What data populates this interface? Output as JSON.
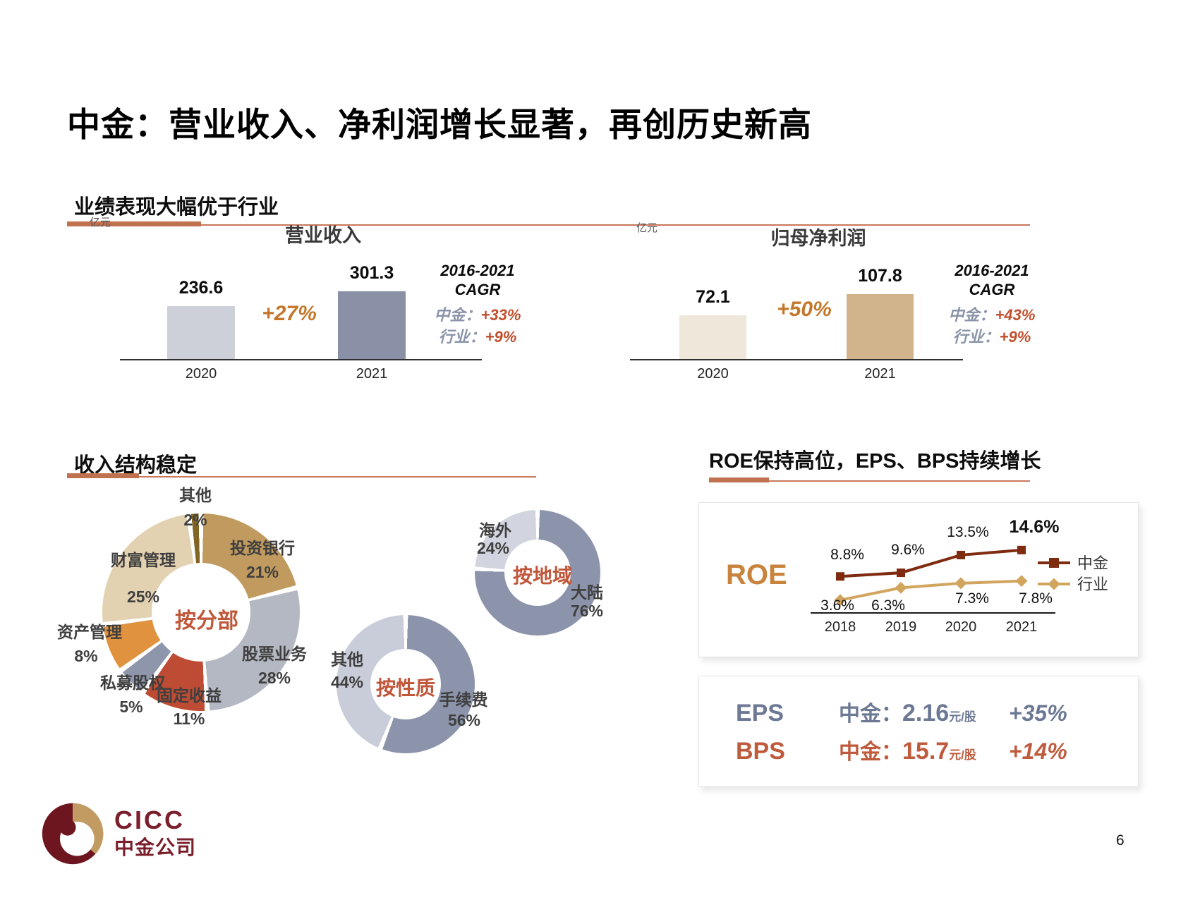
{
  "page": {
    "title": "中金：营业收入、净利润增长显著，再创历史新高",
    "page_number": "6"
  },
  "logo": {
    "text": "CICC",
    "cn": "中金公司"
  },
  "accent": {
    "underline_thick": "#C0714E",
    "underline_thin": "#C9785A",
    "growth_orange": "#C4772A",
    "cagr_label_gray": "#8A93A8",
    "cagr_value_red": "#C24F2E",
    "donut_center_orange": "#C0563A"
  },
  "section_performance": {
    "header": "业绩表现大幅优于行业",
    "revenue_chart": {
      "unit": "亿元",
      "title": "营业收入",
      "growth": "+27%",
      "cagr": {
        "period": "2016-2021",
        "label": "CAGR",
        "rows": [
          {
            "name": "中金：",
            "value": "+33%"
          },
          {
            "name": "行业：",
            "value": "+9%"
          }
        ]
      },
      "bars": [
        {
          "year": "2020",
          "value": 236.6,
          "label": "236.6",
          "color": "#CDCFD9"
        },
        {
          "year": "2021",
          "value": 301.3,
          "label": "301.3",
          "color": "#8A90A5"
        }
      ]
    },
    "profit_chart": {
      "unit": "亿元",
      "title": "归母净利润",
      "growth": "+50%",
      "cagr": {
        "period": "2016-2021",
        "label": "CAGR",
        "rows": [
          {
            "name": "中金：",
            "value": "+43%"
          },
          {
            "name": "行业：",
            "value": "+9%"
          }
        ]
      },
      "bars": [
        {
          "year": "2020",
          "value": 72.1,
          "label": "72.1",
          "color": "#EEE7DA"
        },
        {
          "year": "2021",
          "value": 107.8,
          "label": "107.8",
          "color": "#D2B48C"
        }
      ]
    }
  },
  "section_structure": {
    "header": "收入结构稳定",
    "by_division": {
      "center_label": "按分部",
      "slices": [
        {
          "label": "投资银行",
          "pct": 21,
          "pct_label": "21%",
          "color": "#C09A5E"
        },
        {
          "label": "股票业务",
          "pct": 28,
          "pct_label": "28%",
          "color": "#B4B8C2"
        },
        {
          "label": "固定收益",
          "pct": 11,
          "pct_label": "11%",
          "color": "#BE4B33"
        },
        {
          "label": "私募股权",
          "pct": 5,
          "pct_label": "5%",
          "color": "#8E96AC"
        },
        {
          "label": "资产管理",
          "pct": 8,
          "pct_label": "8%",
          "color": "#E0923F"
        },
        {
          "label": "财富管理",
          "pct": 25,
          "pct_label": "25%",
          "color": "#E3D2B2"
        },
        {
          "label": "其他",
          "pct": 2,
          "pct_label": "2%",
          "color": "#826423"
        }
      ]
    },
    "by_nature": {
      "center_label": "按性质",
      "slices": [
        {
          "label": "手续费",
          "pct": 56,
          "pct_label": "56%",
          "color": "#8C94AB"
        },
        {
          "label": "其他",
          "pct": 44,
          "pct_label": "44%",
          "color": "#C9CDD9"
        }
      ]
    },
    "by_region": {
      "center_label": "按地域",
      "slices": [
        {
          "label": "大陆",
          "pct": 76,
          "pct_label": "76%",
          "color": "#8C94AB"
        },
        {
          "label": "海外",
          "pct": 24,
          "pct_label": "24%",
          "color": "#D2D5DF"
        }
      ]
    }
  },
  "section_returns": {
    "header": "ROE保持高位，EPS、BPS持续增长",
    "roe_chart": {
      "title": "ROE",
      "years": [
        "2018",
        "2019",
        "2020",
        "2021"
      ],
      "series": [
        {
          "name": "中金",
          "color": "#7E2B10",
          "marker": "square",
          "values": [
            8.8,
            9.6,
            13.5,
            14.6
          ],
          "labels": [
            "8.8%",
            "9.6%",
            "13.5%",
            "14.6%"
          ]
        },
        {
          "name": "行业",
          "color": "#D2A55F",
          "marker": "diamond",
          "values": [
            3.6,
            6.3,
            7.3,
            7.8
          ],
          "labels": [
            "3.6%",
            "6.3%",
            "7.3%",
            "7.8%"
          ]
        }
      ]
    },
    "kpis": [
      {
        "name": "EPS",
        "label": "中金：",
        "value": "2.16",
        "unit": "元/股",
        "growth": "+35%",
        "color": "#6D7894"
      },
      {
        "name": "BPS",
        "label": "中金：",
        "value": "15.7",
        "unit": "元/股",
        "growth": "+14%",
        "color": "#BF5B3D"
      }
    ]
  },
  "chart_data": [
    {
      "type": "bar",
      "title": "营业收入",
      "ylabel": "亿元",
      "categories": [
        "2020",
        "2021"
      ],
      "values": [
        236.6,
        301.3
      ],
      "growth": "+27%",
      "cagr_2016_2021": {
        "中金": "+33%",
        "行业": "+9%"
      }
    },
    {
      "type": "bar",
      "title": "归母净利润",
      "ylabel": "亿元",
      "categories": [
        "2020",
        "2021"
      ],
      "values": [
        72.1,
        107.8
      ],
      "growth": "+50%",
      "cagr_2016_2021": {
        "中金": "+43%",
        "行业": "+9%"
      }
    },
    {
      "type": "pie",
      "title": "按分部",
      "categories": [
        "投资银行",
        "股票业务",
        "固定收益",
        "私募股权",
        "资产管理",
        "财富管理",
        "其他"
      ],
      "values": [
        21,
        28,
        11,
        5,
        8,
        25,
        2
      ]
    },
    {
      "type": "pie",
      "title": "按性质",
      "categories": [
        "手续费",
        "其他"
      ],
      "values": [
        56,
        44
      ]
    },
    {
      "type": "pie",
      "title": "按地域",
      "categories": [
        "大陆",
        "海外"
      ],
      "values": [
        76,
        24
      ]
    },
    {
      "type": "line",
      "title": "ROE",
      "x": [
        "2018",
        "2019",
        "2020",
        "2021"
      ],
      "series": [
        {
          "name": "中金",
          "values": [
            8.8,
            9.6,
            13.5,
            14.6
          ]
        },
        {
          "name": "行业",
          "values": [
            3.6,
            6.3,
            7.3,
            7.8
          ]
        }
      ],
      "legend_position": "right",
      "grid": false
    },
    {
      "type": "table",
      "title": "EPS/BPS",
      "rows": [
        [
          "EPS",
          "中金：",
          "2.16",
          "元/股",
          "+35%"
        ],
        [
          "BPS",
          "中金：",
          "15.7",
          "元/股",
          "+14%"
        ]
      ]
    }
  ]
}
